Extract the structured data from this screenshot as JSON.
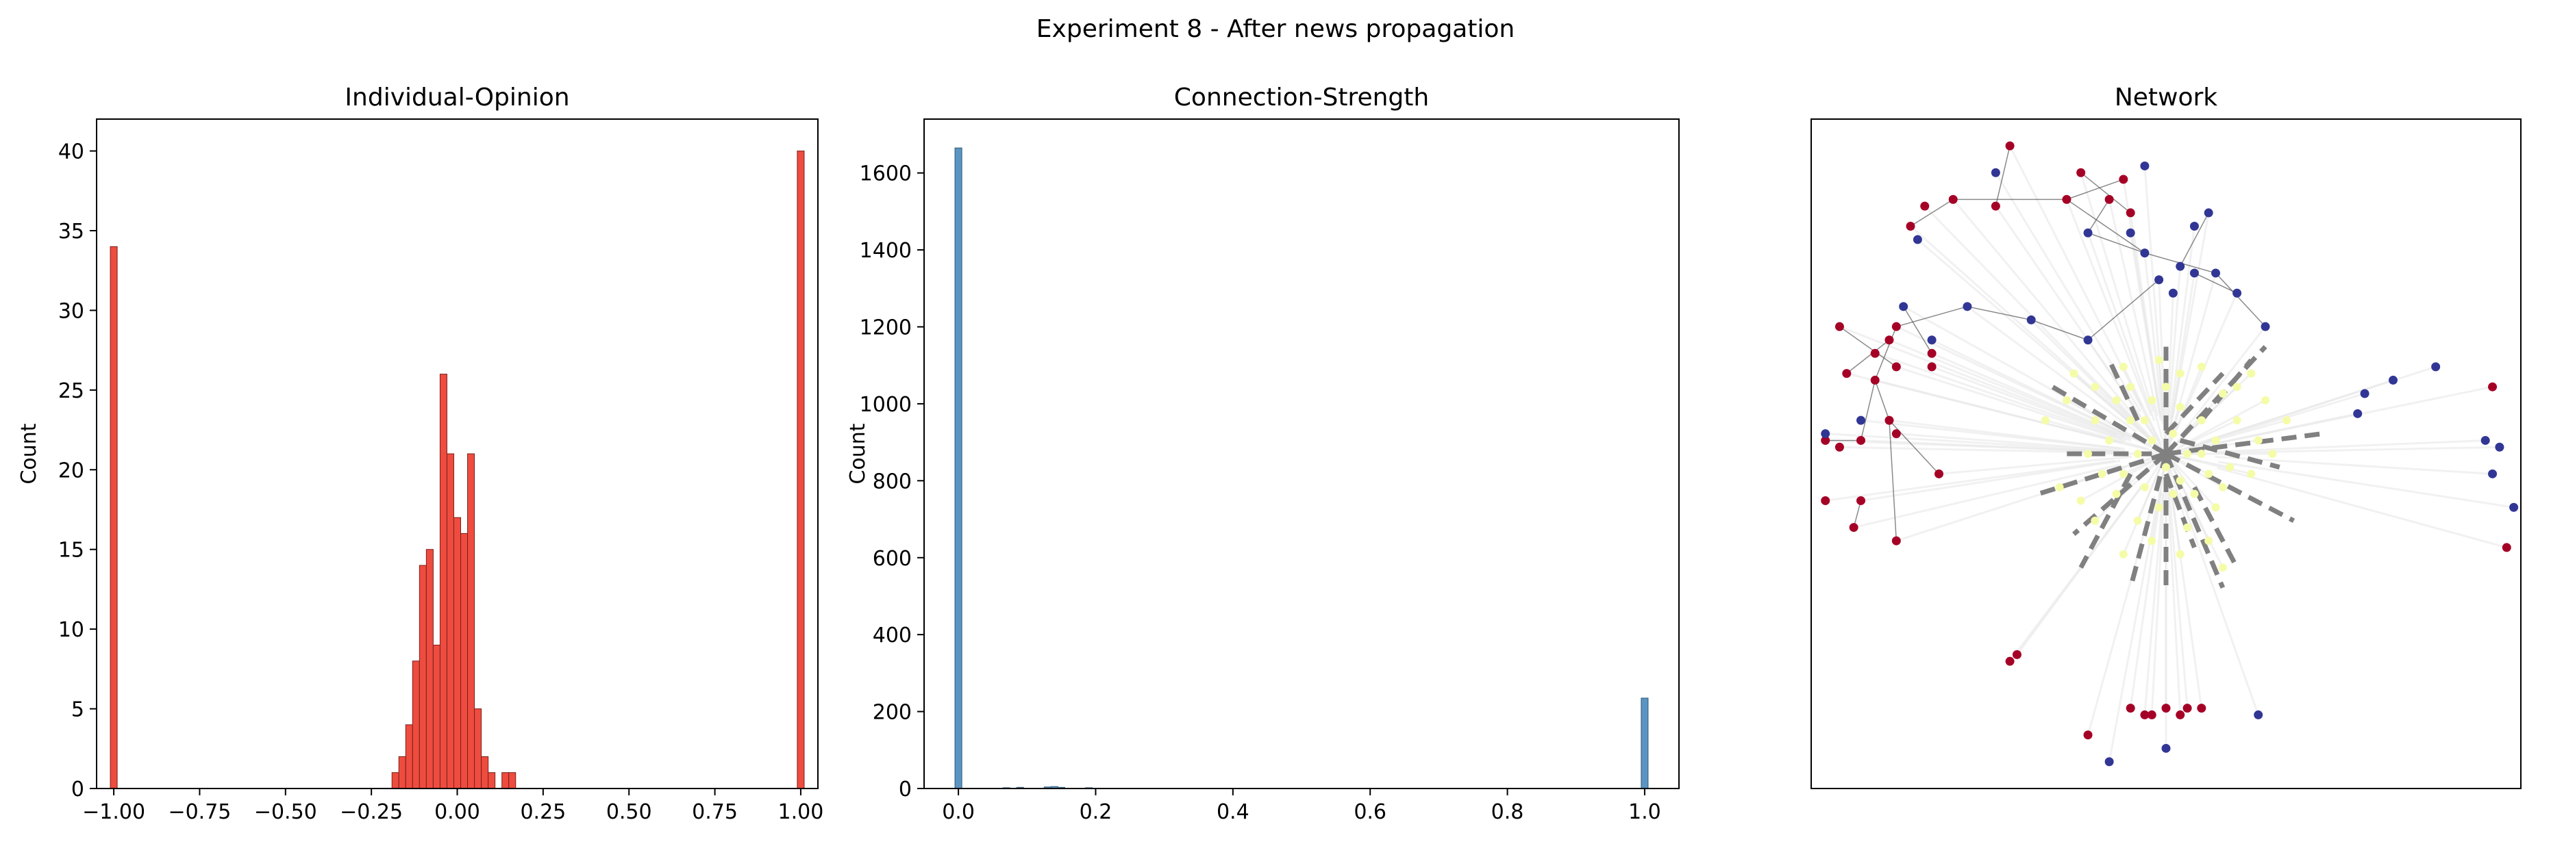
{
  "figure_title": "Experiment 8 - After news propagation",
  "chart_data": [
    {
      "type": "bar",
      "title": "Individual-Opinion",
      "xlabel": "",
      "ylabel": "Count",
      "xlim": [
        -1.05,
        1.05
      ],
      "ylim": [
        0,
        42
      ],
      "xticks": [
        -1.0,
        -0.75,
        -0.5,
        -0.25,
        0.0,
        0.25,
        0.5,
        0.75,
        1.0
      ],
      "xtick_labels": [
        "−1.00",
        "−0.75",
        "−0.50",
        "−0.25",
        "0.00",
        "0.25",
        "0.50",
        "0.75",
        "1.00"
      ],
      "yticks": [
        0,
        5,
        10,
        15,
        20,
        25,
        30,
        35,
        40
      ],
      "ytick_labels": [
        "0",
        "5",
        "10",
        "15",
        "20",
        "25",
        "30",
        "35",
        "40"
      ],
      "bin_width": 0.02,
      "bins": [
        {
          "x": -1.0,
          "count": 34
        },
        {
          "x": -0.18,
          "count": 1
        },
        {
          "x": -0.16,
          "count": 2
        },
        {
          "x": -0.14,
          "count": 4
        },
        {
          "x": -0.12,
          "count": 8
        },
        {
          "x": -0.1,
          "count": 14
        },
        {
          "x": -0.08,
          "count": 15
        },
        {
          "x": -0.06,
          "count": 9
        },
        {
          "x": -0.04,
          "count": 26
        },
        {
          "x": -0.02,
          "count": 21
        },
        {
          "x": 0.0,
          "count": 17
        },
        {
          "x": 0.02,
          "count": 16
        },
        {
          "x": 0.04,
          "count": 21
        },
        {
          "x": 0.06,
          "count": 5
        },
        {
          "x": 0.08,
          "count": 2
        },
        {
          "x": 0.1,
          "count": 1
        },
        {
          "x": 0.14,
          "count": 1
        },
        {
          "x": 0.16,
          "count": 1
        },
        {
          "x": 1.0,
          "count": 40
        }
      ],
      "colors": {
        "fill": "#ee4c3f",
        "edge": "#7a1f1a"
      }
    },
    {
      "type": "bar",
      "title": "Connection-Strength",
      "xlabel": "",
      "ylabel": "Count",
      "xlim": [
        -0.05,
        1.05
      ],
      "ylim": [
        0,
        1740
      ],
      "xticks": [
        0.0,
        0.2,
        0.4,
        0.6,
        0.8,
        1.0
      ],
      "xtick_labels": [
        "0.0",
        "0.2",
        "0.4",
        "0.6",
        "0.8",
        "1.0"
      ],
      "yticks": [
        0,
        200,
        400,
        600,
        800,
        1000,
        1200,
        1400,
        1600
      ],
      "ytick_labels": [
        "0",
        "200",
        "400",
        "600",
        "800",
        "1000",
        "1200",
        "1400",
        "1600"
      ],
      "bin_width": 0.01,
      "bins": [
        {
          "x": 0.0,
          "count": 1665
        },
        {
          "x": 0.07,
          "count": 2
        },
        {
          "x": 0.09,
          "count": 3
        },
        {
          "x": 0.13,
          "count": 4
        },
        {
          "x": 0.14,
          "count": 5
        },
        {
          "x": 0.15,
          "count": 3
        },
        {
          "x": 0.19,
          "count": 2
        },
        {
          "x": 1.0,
          "count": 235
        }
      ],
      "colors": {
        "fill": "#5b94c2",
        "edge": "#2d5878"
      }
    },
    {
      "type": "scatter",
      "title": "Network",
      "xlim": [
        0,
        1
      ],
      "ylim": [
        0,
        1
      ],
      "grid": false,
      "colors": {
        "red": "#a50026",
        "blue": "#313695",
        "yellow": "#f5fca8",
        "dashed_edge": "#808080",
        "thin_edge": "#595959",
        "background_edge": "#e8e8e8"
      },
      "nodes_red": [
        [
          0.28,
          0.96
        ],
        [
          0.2,
          0.88
        ],
        [
          0.38,
          0.92
        ],
        [
          0.36,
          0.88
        ],
        [
          0.44,
          0.91
        ],
        [
          0.42,
          0.88
        ],
        [
          0.45,
          0.86
        ],
        [
          0.16,
          0.87
        ],
        [
          0.14,
          0.84
        ],
        [
          0.26,
          0.87
        ],
        [
          0.12,
          0.69
        ],
        [
          0.04,
          0.69
        ],
        [
          0.11,
          0.67
        ],
        [
          0.17,
          0.65
        ],
        [
          0.09,
          0.65
        ],
        [
          0.17,
          0.63
        ],
        [
          0.12,
          0.63
        ],
        [
          0.09,
          0.61
        ],
        [
          0.05,
          0.62
        ],
        [
          0.11,
          0.55
        ],
        [
          0.12,
          0.53
        ],
        [
          0.02,
          0.52
        ],
        [
          0.07,
          0.52
        ],
        [
          0.04,
          0.51
        ],
        [
          0.18,
          0.47
        ],
        [
          0.02,
          0.43
        ],
        [
          0.07,
          0.43
        ],
        [
          0.06,
          0.39
        ],
        [
          0.12,
          0.37
        ],
        [
          0.96,
          0.6
        ],
        [
          0.98,
          0.36
        ],
        [
          0.29,
          0.2
        ],
        [
          0.28,
          0.19
        ],
        [
          0.45,
          0.12
        ],
        [
          0.47,
          0.11
        ],
        [
          0.5,
          0.12
        ],
        [
          0.52,
          0.11
        ],
        [
          0.53,
          0.12
        ],
        [
          0.55,
          0.12
        ],
        [
          0.48,
          0.11
        ],
        [
          0.39,
          0.08
        ]
      ],
      "nodes_blue": [
        [
          0.26,
          0.92
        ],
        [
          0.47,
          0.93
        ],
        [
          0.15,
          0.82
        ],
        [
          0.39,
          0.83
        ],
        [
          0.45,
          0.83
        ],
        [
          0.54,
          0.84
        ],
        [
          0.56,
          0.86
        ],
        [
          0.47,
          0.8
        ],
        [
          0.52,
          0.78
        ],
        [
          0.54,
          0.77
        ],
        [
          0.49,
          0.76
        ],
        [
          0.57,
          0.77
        ],
        [
          0.64,
          0.69
        ],
        [
          0.51,
          0.74
        ],
        [
          0.22,
          0.72
        ],
        [
          0.31,
          0.7
        ],
        [
          0.39,
          0.67
        ],
        [
          0.13,
          0.72
        ],
        [
          0.17,
          0.67
        ],
        [
          0.88,
          0.63
        ],
        [
          0.82,
          0.61
        ],
        [
          0.77,
          0.56
        ],
        [
          0.78,
          0.59
        ],
        [
          0.95,
          0.52
        ],
        [
          0.97,
          0.51
        ],
        [
          0.96,
          0.47
        ],
        [
          0.99,
          0.42
        ],
        [
          0.02,
          0.53
        ],
        [
          0.07,
          0.55
        ],
        [
          0.6,
          0.74
        ],
        [
          0.63,
          0.11
        ],
        [
          0.42,
          0.04
        ],
        [
          0.5,
          0.06
        ]
      ],
      "nodes_yellow": [
        [
          0.37,
          0.62
        ],
        [
          0.4,
          0.6
        ],
        [
          0.43,
          0.58
        ],
        [
          0.45,
          0.55
        ],
        [
          0.48,
          0.58
        ],
        [
          0.5,
          0.6
        ],
        [
          0.52,
          0.57
        ],
        [
          0.55,
          0.55
        ],
        [
          0.57,
          0.52
        ],
        [
          0.48,
          0.52
        ],
        [
          0.46,
          0.5
        ],
        [
          0.44,
          0.47
        ],
        [
          0.5,
          0.48
        ],
        [
          0.53,
          0.5
        ],
        [
          0.56,
          0.47
        ],
        [
          0.59,
          0.48
        ],
        [
          0.47,
          0.45
        ],
        [
          0.51,
          0.44
        ],
        [
          0.49,
          0.42
        ],
        [
          0.54,
          0.44
        ],
        [
          0.42,
          0.52
        ],
        [
          0.4,
          0.55
        ],
        [
          0.6,
          0.55
        ],
        [
          0.63,
          0.52
        ],
        [
          0.65,
          0.5
        ],
        [
          0.35,
          0.45
        ],
        [
          0.38,
          0.43
        ],
        [
          0.52,
          0.62
        ],
        [
          0.55,
          0.63
        ],
        [
          0.44,
          0.63
        ],
        [
          0.49,
          0.64
        ],
        [
          0.58,
          0.59
        ],
        [
          0.62,
          0.47
        ],
        [
          0.46,
          0.4
        ],
        [
          0.53,
          0.39
        ],
        [
          0.57,
          0.42
        ],
        [
          0.41,
          0.47
        ],
        [
          0.43,
          0.44
        ],
        [
          0.47,
          0.55
        ],
        [
          0.51,
          0.53
        ],
        [
          0.55,
          0.5
        ],
        [
          0.58,
          0.45
        ],
        [
          0.52,
          0.46
        ],
        [
          0.45,
          0.6
        ],
        [
          0.6,
          0.6
        ],
        [
          0.33,
          0.55
        ],
        [
          0.4,
          0.4
        ],
        [
          0.56,
          0.37
        ],
        [
          0.62,
          0.62
        ],
        [
          0.48,
          0.37
        ],
        [
          0.44,
          0.35
        ],
        [
          0.52,
          0.35
        ],
        [
          0.58,
          0.33
        ],
        [
          0.64,
          0.58
        ],
        [
          0.67,
          0.55
        ],
        [
          0.36,
          0.58
        ],
        [
          0.39,
          0.5
        ]
      ],
      "dashed_edges": [
        [
          0.5,
          0.5,
          0.32,
          0.44
        ],
        [
          0.5,
          0.5,
          0.72,
          0.53
        ],
        [
          0.5,
          0.5,
          0.5,
          0.66
        ],
        [
          0.5,
          0.5,
          0.5,
          0.3
        ],
        [
          0.5,
          0.5,
          0.68,
          0.4
        ],
        [
          0.5,
          0.5,
          0.34,
          0.6
        ],
        [
          0.5,
          0.5,
          0.64,
          0.66
        ],
        [
          0.5,
          0.5,
          0.45,
          0.3
        ],
        [
          0.5,
          0.5,
          0.58,
          0.3
        ],
        [
          0.5,
          0.5,
          0.37,
          0.38
        ],
        [
          0.46,
          0.55,
          0.42,
          0.64
        ],
        [
          0.55,
          0.55,
          0.62,
          0.64
        ],
        [
          0.45,
          0.47,
          0.38,
          0.33
        ],
        [
          0.54,
          0.45,
          0.6,
          0.33
        ],
        [
          0.52,
          0.52,
          0.66,
          0.48
        ],
        [
          0.48,
          0.5,
          0.36,
          0.5
        ],
        [
          0.5,
          0.47,
          0.54,
          0.36
        ],
        [
          0.5,
          0.53,
          0.58,
          0.62
        ]
      ],
      "thin_edges": [
        [
          0.2,
          0.88,
          0.36,
          0.88
        ],
        [
          0.36,
          0.88,
          0.44,
          0.91
        ],
        [
          0.36,
          0.88,
          0.47,
          0.8
        ],
        [
          0.47,
          0.8,
          0.57,
          0.77
        ],
        [
          0.57,
          0.77,
          0.64,
          0.69
        ],
        [
          0.47,
          0.8,
          0.39,
          0.83
        ],
        [
          0.39,
          0.83,
          0.42,
          0.88
        ],
        [
          0.31,
          0.7,
          0.39,
          0.67
        ],
        [
          0.31,
          0.7,
          0.22,
          0.72
        ],
        [
          0.22,
          0.72,
          0.12,
          0.69
        ],
        [
          0.12,
          0.69,
          0.09,
          0.61
        ],
        [
          0.09,
          0.61,
          0.11,
          0.55
        ],
        [
          0.11,
          0.55,
          0.18,
          0.47
        ],
        [
          0.09,
          0.61,
          0.07,
          0.52
        ],
        [
          0.07,
          0.52,
          0.02,
          0.52
        ],
        [
          0.11,
          0.55,
          0.12,
          0.37
        ],
        [
          0.07,
          0.43,
          0.06,
          0.39
        ],
        [
          0.14,
          0.84,
          0.2,
          0.88
        ],
        [
          0.26,
          0.87,
          0.28,
          0.96
        ],
        [
          0.45,
          0.86,
          0.38,
          0.92
        ],
        [
          0.52,
          0.78,
          0.56,
          0.86
        ],
        [
          0.49,
          0.76,
          0.39,
          0.67
        ],
        [
          0.6,
          0.74,
          0.54,
          0.77
        ],
        [
          0.17,
          0.65,
          0.13,
          0.72
        ],
        [
          0.12,
          0.63,
          0.04,
          0.69
        ],
        [
          0.05,
          0.62,
          0.11,
          0.67
        ]
      ]
    }
  ]
}
